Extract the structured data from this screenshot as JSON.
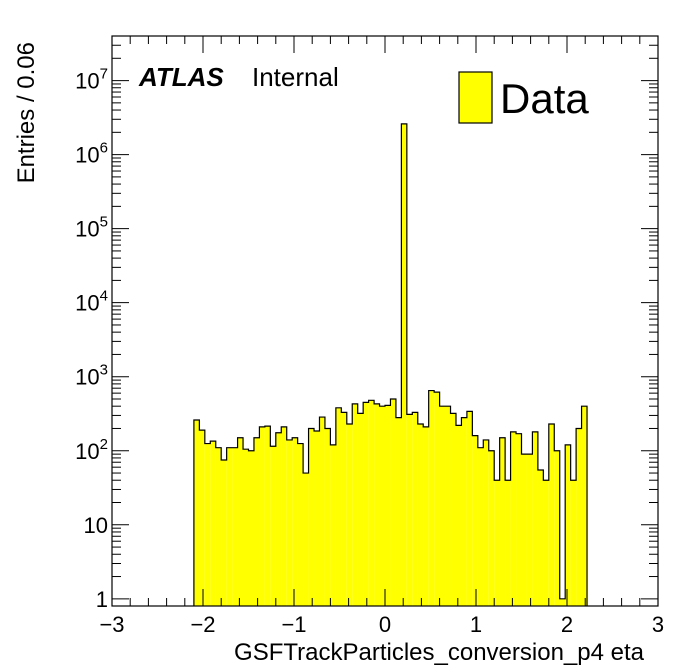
{
  "chart_data": {
    "type": "bar",
    "histogram": true,
    "title": "",
    "xlabel": "GSFTrackParticles_conversion_p4 eta",
    "ylabel": "Entries / 0.06",
    "xlim": [
      -3,
      3
    ],
    "ylim": [
      0.8,
      40000000
    ],
    "yscale": "log",
    "grid": false,
    "legend_position": "top-right",
    "x_tick_labels": [
      "−3",
      "−2",
      "−1",
      "0",
      "1",
      "2",
      "3"
    ],
    "y_tick_labels": [
      {
        "value": 1,
        "base": "1",
        "exp": ""
      },
      {
        "value": 10,
        "base": "10",
        "exp": ""
      },
      {
        "value": 100,
        "base": "10",
        "exp": "2"
      },
      {
        "value": 1000,
        "base": "10",
        "exp": "3"
      },
      {
        "value": 10000,
        "base": "10",
        "exp": "4"
      },
      {
        "value": 100000,
        "base": "10",
        "exp": "5"
      },
      {
        "value": 1000000,
        "base": "10",
        "exp": "6"
      },
      {
        "value": 10000000,
        "base": "10",
        "exp": "7"
      }
    ],
    "label_atlas": "ATLAS",
    "label_status": "Internal",
    "series": [
      {
        "name": "Data",
        "color": "#ffff00",
        "edge_color": "#000000",
        "bin_edges_start": -2.1,
        "bin_width": 0.06,
        "values": [
          260,
          190,
          125,
          135,
          110,
          75,
          110,
          110,
          150,
          105,
          100,
          150,
          210,
          215,
          115,
          175,
          210,
          140,
          150,
          125,
          50,
          200,
          185,
          285,
          200,
          120,
          380,
          330,
          230,
          430,
          320,
          450,
          480,
          430,
          400,
          410,
          500,
          280,
          2600000,
          310,
          330,
          230,
          210,
          650,
          620,
          400,
          400,
          320,
          220,
          280,
          340,
          160,
          110,
          140,
          100,
          40,
          150,
          40,
          180,
          170,
          90,
          90,
          180,
          55,
          40,
          230,
          100,
          1,
          120,
          40,
          200,
          400
        ]
      }
    ]
  }
}
